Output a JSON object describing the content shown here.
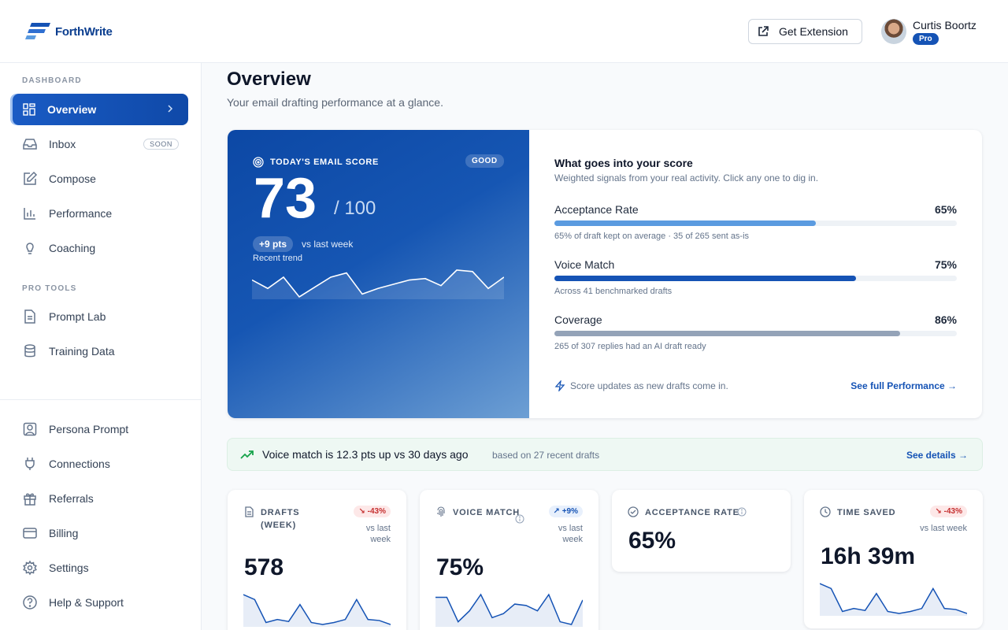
{
  "header": {
    "logo_text": "ForthWrite",
    "extension_button": "Get Extension",
    "user_name": "Curtis Boortz",
    "plan_badge": "Pro"
  },
  "sidebar": {
    "section_dashboard": "DASHBOARD",
    "section_pro": "PRO TOOLS",
    "items": [
      {
        "label": "Overview",
        "icon": "grid-icon",
        "active": true
      },
      {
        "label": "Inbox",
        "icon": "inbox-icon",
        "badge": "SOON"
      },
      {
        "label": "Compose",
        "icon": "pencil-icon"
      },
      {
        "label": "Performance",
        "icon": "bar-chart-icon"
      },
      {
        "label": "Coaching",
        "icon": "lightbulb-icon"
      },
      {
        "label": "Prompt Lab",
        "icon": "document-icon"
      },
      {
        "label": "Training Data",
        "icon": "database-icon"
      },
      {
        "label": "Persona Prompt",
        "icon": "user-square-icon"
      },
      {
        "label": "Connections",
        "icon": "plug-icon"
      },
      {
        "label": "Referrals",
        "icon": "gift-icon"
      },
      {
        "label": "Billing",
        "icon": "credit-card-icon"
      },
      {
        "label": "Settings",
        "icon": "gear-icon"
      },
      {
        "label": "Help & Support",
        "icon": "help-circle-icon"
      }
    ]
  },
  "page": {
    "title": "Overview",
    "subtitle": "Your email drafting performance at a glance."
  },
  "score": {
    "label": "TODAY'S EMAIL SCORE",
    "badge": "GOOD",
    "value": "73",
    "out_of": "/ 100",
    "delta": "+9 pts",
    "delta_caption": "vs last week",
    "trend_label": "Recent trend",
    "trend": [
      60,
      54,
      62,
      48,
      55,
      62,
      65,
      50,
      54,
      57,
      60,
      61,
      56,
      67,
      66,
      54,
      62
    ]
  },
  "breakdown": {
    "title": "What goes into your score",
    "subtitle": "Weighted signals from your real activity. Click any one to dig in.",
    "metrics": [
      {
        "name": "Acceptance Rate",
        "pct": "65%",
        "value": 0.65,
        "color": "#5b9be0",
        "note": "65% of draft kept on average · 35 of 265 sent as-is"
      },
      {
        "name": "Voice Match",
        "pct": "75%",
        "value": 0.75,
        "color": "#1553b5",
        "note": "Across 41 benchmarked drafts"
      },
      {
        "name": "Coverage",
        "pct": "86%",
        "value": 0.86,
        "color": "#94a3b8",
        "note": "265 of 307 replies had an AI draft ready"
      }
    ],
    "footer": "Score updates as new drafts come in.",
    "link": "See full Performance →"
  },
  "banner": {
    "text": "Voice match is 12.3 pts up vs 30 days ago",
    "sub": "based on 27 recent drafts",
    "link": "See details →"
  },
  "kpis": [
    {
      "label": "DRAFTS (WEEK)",
      "icon": "document-icon",
      "chip": "↘ -43%",
      "chip_type": "down",
      "vs": "vs last week",
      "value": "578",
      "spark": [
        40,
        35,
        12,
        15,
        13,
        30,
        12,
        10,
        12,
        15,
        35,
        15,
        14,
        10
      ]
    },
    {
      "label": "VOICE MATCH",
      "icon": "fingerprint-icon",
      "info": "info-icon",
      "chip": "↗ +9%",
      "chip_type": "up",
      "vs": "vs last week",
      "value": "75%",
      "spark": [
        30,
        30,
        12,
        20,
        32,
        15,
        18,
        25,
        24,
        20,
        32,
        12,
        10,
        28
      ]
    },
    {
      "label": "ACCEPTANCE RATE",
      "icon": "check-circle-icon",
      "info": "info-icon",
      "value": "65%"
    },
    {
      "label": "TIME SAVED",
      "icon": "clock-icon",
      "chip": "↘ -43%",
      "chip_type": "down",
      "vs": "vs last week",
      "value": "16h 39m",
      "spark": [
        40,
        35,
        12,
        15,
        13,
        30,
        12,
        10,
        12,
        15,
        35,
        15,
        14,
        10
      ]
    }
  ]
}
